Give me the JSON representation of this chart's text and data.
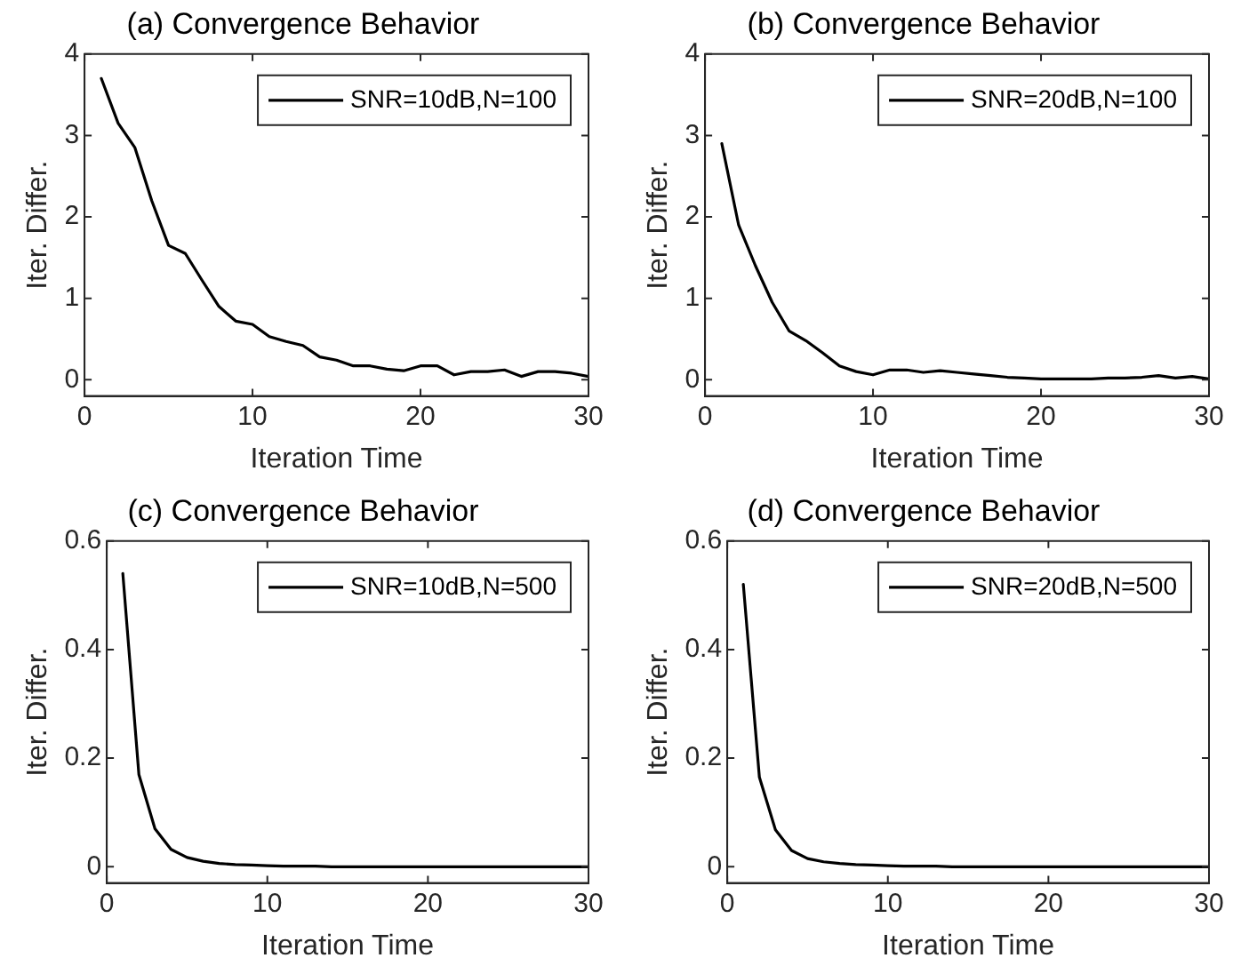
{
  "chart_data": [
    {
      "type": "line",
      "title": "(a) Convergence Behavior",
      "xlabel": "Iteration Time",
      "ylabel": "Iter. Differ.",
      "x": [
        1,
        2,
        3,
        4,
        5,
        6,
        7,
        8,
        9,
        10,
        11,
        12,
        13,
        14,
        15,
        16,
        17,
        18,
        19,
        20,
        21,
        22,
        23,
        24,
        25,
        26,
        27,
        28,
        29,
        30
      ],
      "xlim": [
        0,
        30
      ],
      "xticks": [
        0,
        10,
        20,
        30
      ],
      "ylim": [
        -0.2,
        4
      ],
      "yticks": [
        0,
        1,
        2,
        3,
        4
      ],
      "grid": false,
      "legend": "top right",
      "marker": "none",
      "line_style": "solid",
      "series": [
        {
          "name": "SNR=10dB,N=100",
          "color": "#000000",
          "values": [
            3.7,
            3.15,
            2.85,
            2.2,
            1.65,
            1.55,
            1.22,
            0.9,
            0.72,
            0.68,
            0.53,
            0.47,
            0.42,
            0.28,
            0.24,
            0.17,
            0.17,
            0.13,
            0.11,
            0.17,
            0.17,
            0.06,
            0.1,
            0.1,
            0.12,
            0.04,
            0.1,
            0.1,
            0.08,
            0.04
          ]
        }
      ]
    },
    {
      "type": "line",
      "title": "(b) Convergence Behavior",
      "xlabel": "Iteration Time",
      "ylabel": "Iter. Differ.",
      "x": [
        1,
        2,
        3,
        4,
        5,
        6,
        7,
        8,
        9,
        10,
        11,
        12,
        13,
        14,
        15,
        16,
        17,
        18,
        19,
        20,
        21,
        22,
        23,
        24,
        25,
        26,
        27,
        28,
        29,
        30
      ],
      "xlim": [
        0,
        30
      ],
      "xticks": [
        0,
        10,
        20,
        30
      ],
      "ylim": [
        -0.2,
        4
      ],
      "yticks": [
        0,
        1,
        2,
        3,
        4
      ],
      "grid": false,
      "legend": "top right",
      "marker": "none",
      "line_style": "solid",
      "series": [
        {
          "name": "SNR=20dB,N=100",
          "color": "#000000",
          "values": [
            2.9,
            1.9,
            1.4,
            0.95,
            0.6,
            0.48,
            0.33,
            0.17,
            0.1,
            0.06,
            0.12,
            0.12,
            0.09,
            0.11,
            0.09,
            0.07,
            0.05,
            0.03,
            0.02,
            0.01,
            0.01,
            0.01,
            0.01,
            0.02,
            0.02,
            0.03,
            0.05,
            0.02,
            0.04,
            0.01
          ]
        }
      ]
    },
    {
      "type": "line",
      "title": "(c) Convergence Behavior",
      "xlabel": "Iteration Time",
      "ylabel": "Iter. Differ.",
      "x": [
        1,
        2,
        3,
        4,
        5,
        6,
        7,
        8,
        9,
        10,
        11,
        12,
        13,
        14,
        15,
        16,
        17,
        18,
        19,
        20,
        21,
        22,
        23,
        24,
        25,
        26,
        27,
        28,
        29,
        30
      ],
      "xlim": [
        0,
        30
      ],
      "xticks": [
        0,
        10,
        20,
        30
      ],
      "ylim": [
        -0.03,
        0.6
      ],
      "yticks": [
        0,
        0.2,
        0.4,
        0.6
      ],
      "grid": false,
      "legend": "top right",
      "marker": "none",
      "line_style": "solid",
      "series": [
        {
          "name": "SNR=10dB,N=500",
          "color": "#000000",
          "values": [
            0.54,
            0.17,
            0.07,
            0.032,
            0.017,
            0.01,
            0.006,
            0.004,
            0.003,
            0.002,
            0.001,
            0.001,
            0.001,
            0,
            0,
            0,
            0,
            0,
            0,
            0,
            0,
            0,
            0,
            0,
            0,
            0,
            0,
            0,
            0,
            0
          ]
        }
      ]
    },
    {
      "type": "line",
      "title": "(d) Convergence Behavior",
      "xlabel": "Iteration Time",
      "ylabel": "Iter. Differ.",
      "x": [
        1,
        2,
        3,
        4,
        5,
        6,
        7,
        8,
        9,
        10,
        11,
        12,
        13,
        14,
        15,
        16,
        17,
        18,
        19,
        20,
        21,
        22,
        23,
        24,
        25,
        26,
        27,
        28,
        29,
        30
      ],
      "xlim": [
        0,
        30
      ],
      "xticks": [
        0,
        10,
        20,
        30
      ],
      "ylim": [
        -0.03,
        0.6
      ],
      "yticks": [
        0,
        0.2,
        0.4,
        0.6
      ],
      "grid": false,
      "legend": "top right",
      "marker": "none",
      "line_style": "solid",
      "series": [
        {
          "name": "SNR=20dB,N=500",
          "color": "#000000",
          "values": [
            0.52,
            0.165,
            0.068,
            0.03,
            0.015,
            0.009,
            0.006,
            0.004,
            0.003,
            0.002,
            0.001,
            0.001,
            0.001,
            0,
            0,
            0,
            0,
            0,
            0,
            0,
            0,
            0,
            0,
            0,
            0,
            0,
            0,
            0,
            0,
            0
          ]
        }
      ]
    }
  ]
}
